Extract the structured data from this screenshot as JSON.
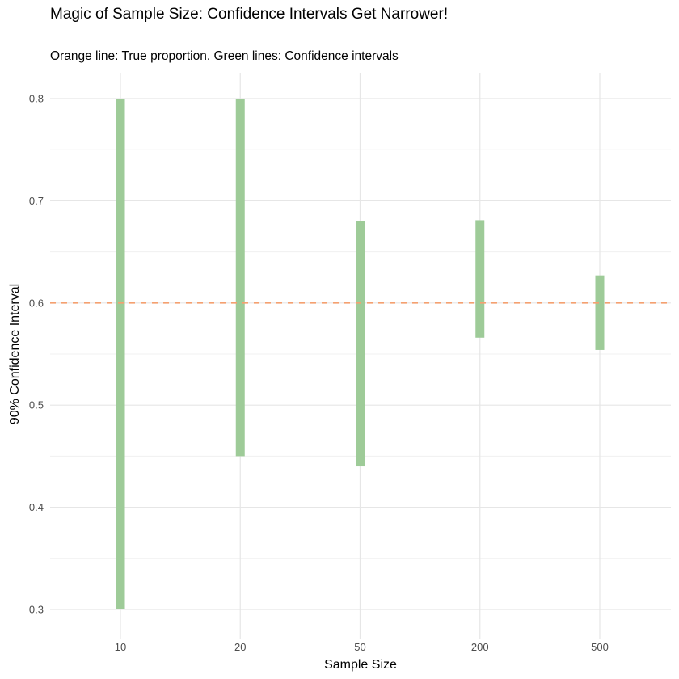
{
  "chart_data": {
    "type": "errorbar",
    "title": "Magic of Sample Size: Confidence Intervals Get Narrower!",
    "subtitle": "Orange line: True proportion. Green lines: Confidence intervals",
    "xlabel": "Sample Size",
    "ylabel": "90% Confidence Interval",
    "categories": [
      "10",
      "20",
      "50",
      "200",
      "500"
    ],
    "lower": [
      0.3,
      0.45,
      0.44,
      0.566,
      0.554
    ],
    "upper": [
      0.8,
      0.8,
      0.68,
      0.681,
      0.627
    ],
    "true_proportion": 0.6,
    "yticks": [
      "0.3",
      "0.4",
      "0.5",
      "0.6",
      "0.7",
      "0.8"
    ],
    "ylim": [
      0.255,
      0.83
    ],
    "bar_color": "#9ecb98",
    "line_color": "#f4a070",
    "grid": true
  }
}
